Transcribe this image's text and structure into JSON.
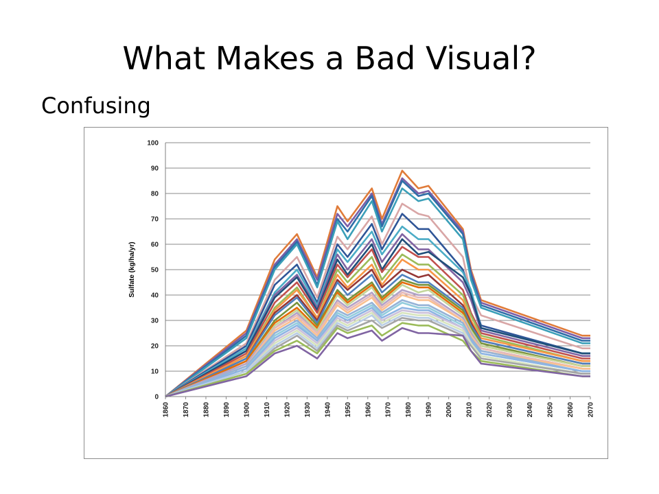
{
  "slide": {
    "title": "What Makes a Bad Visual?",
    "subtitle": "Confusing"
  },
  "chart_data": {
    "type": "line",
    "title": "",
    "xlabel": "",
    "ylabel": "Sulfate (kg/ha/yr)",
    "ylim": [
      0,
      100
    ],
    "xlim": [
      1860,
      2070
    ],
    "yticks": [
      0,
      10,
      20,
      30,
      40,
      50,
      60,
      70,
      80,
      90,
      100
    ],
    "xticks": [
      "1860",
      "1870",
      "1880",
      "1890",
      "1900",
      "1910",
      "1920",
      "1930",
      "1940",
      "1950",
      "1960",
      "1970",
      "1980",
      "1990",
      "2000",
      "2010",
      "2020",
      "2030",
      "2040",
      "2050",
      "2060",
      "2070"
    ],
    "grid": true,
    "legend": "none",
    "x": [
      1860,
      1900,
      1914,
      1925,
      1935,
      1945,
      1950,
      1962,
      1967,
      1977,
      1985,
      1990,
      2007,
      2011,
      2016,
      2066,
      2070
    ],
    "series": [
      {
        "color": "#E07B39",
        "values": [
          0,
          26,
          54,
          64,
          47,
          75,
          69,
          82,
          70,
          89,
          82,
          83,
          66,
          50,
          38,
          24,
          24
        ]
      },
      {
        "color": "#7B5EA7",
        "values": [
          0,
          25,
          52,
          62,
          46,
          72,
          67,
          80,
          68,
          86,
          80,
          81,
          65,
          49,
          37,
          23,
          23
        ]
      },
      {
        "color": "#2E6EA8",
        "values": [
          0,
          24,
          51,
          61,
          44,
          70,
          65,
          79,
          67,
          85,
          79,
          80,
          64,
          48,
          36,
          22,
          22
        ]
      },
      {
        "color": "#3B9FB8",
        "values": [
          0,
          23,
          50,
          60,
          43,
          69,
          62,
          77,
          65,
          82,
          77,
          78,
          62,
          46,
          35,
          21,
          21
        ]
      },
      {
        "color": "#D9A6A6",
        "values": [
          0,
          21,
          46,
          55,
          39,
          63,
          58,
          71,
          60,
          76,
          72,
          71,
          55,
          40,
          32,
          19,
          19
        ]
      },
      {
        "color": "#2F5597",
        "values": [
          0,
          20,
          44,
          52,
          37,
          60,
          55,
          68,
          58,
          72,
          66,
          66,
          50,
          40,
          28,
          17,
          17
        ]
      },
      {
        "color": "#4BACC6",
        "values": [
          0,
          19,
          41,
          50,
          36,
          58,
          53,
          65,
          56,
          67,
          62,
          62,
          49,
          42,
          27,
          17,
          17
        ]
      },
      {
        "color": "#8064A2",
        "values": [
          0,
          18,
          40,
          48,
          35,
          56,
          50,
          62,
          53,
          64,
          58,
          58,
          45,
          38,
          26,
          16,
          16
        ]
      },
      {
        "color": "#1F4E79",
        "values": [
          0,
          18,
          39,
          47,
          34,
          54,
          48,
          60,
          50,
          62,
          56,
          57,
          47,
          40,
          27,
          17,
          17
        ]
      },
      {
        "color": "#C0504D",
        "values": [
          0,
          17,
          37,
          45,
          33,
          52,
          47,
          58,
          49,
          59,
          55,
          55,
          42,
          33,
          25,
          15,
          15
        ]
      },
      {
        "color": "#9BBB59",
        "values": [
          0,
          16,
          35,
          43,
          31,
          50,
          45,
          55,
          46,
          56,
          52,
          52,
          40,
          32,
          24,
          14,
          14
        ]
      },
      {
        "color": "#F79646",
        "values": [
          0,
          16,
          34,
          42,
          31,
          48,
          43,
          52,
          44,
          54,
          50,
          50,
          38,
          30,
          23,
          14,
          14
        ]
      },
      {
        "color": "#953735",
        "values": [
          0,
          15,
          33,
          40,
          30,
          46,
          42,
          50,
          43,
          50,
          47,
          48,
          36,
          29,
          22,
          13,
          13
        ]
      },
      {
        "color": "#4F81BD",
        "values": [
          0,
          15,
          32,
          39,
          29,
          45,
          40,
          48,
          41,
          48,
          45,
          45,
          35,
          28,
          22,
          13,
          13
        ]
      },
      {
        "color": "#77933C",
        "values": [
          0,
          14,
          30,
          37,
          28,
          42,
          38,
          45,
          39,
          46,
          44,
          44,
          34,
          27,
          21,
          12,
          12
        ]
      },
      {
        "color": "#E46C0A",
        "values": [
          0,
          14,
          29,
          35,
          27,
          41,
          37,
          44,
          38,
          45,
          43,
          43,
          33,
          26,
          20,
          12,
          12
        ]
      },
      {
        "color": "#C3D69B",
        "values": [
          0,
          13,
          28,
          34,
          26,
          40,
          36,
          43,
          37,
          44,
          41,
          42,
          32,
          26,
          20,
          12,
          12
        ]
      },
      {
        "color": "#B3A2C7",
        "values": [
          0,
          13,
          27,
          33,
          25,
          38,
          35,
          41,
          36,
          42,
          40,
          40,
          31,
          25,
          19,
          11,
          11
        ]
      },
      {
        "color": "#E6B9B8",
        "values": [
          0,
          12,
          27,
          32,
          25,
          37,
          34,
          40,
          35,
          41,
          39,
          39,
          30,
          24,
          19,
          11,
          11
        ]
      },
      {
        "color": "#FAC090",
        "values": [
          0,
          12,
          26,
          31,
          24,
          36,
          33,
          39,
          34,
          40,
          38,
          38,
          30,
          24,
          18,
          11,
          11
        ]
      },
      {
        "color": "#95B3D7",
        "values": [
          0,
          12,
          25,
          30,
          23,
          34,
          32,
          37,
          33,
          38,
          36,
          36,
          29,
          23,
          18,
          10,
          10
        ]
      },
      {
        "color": "#93CDDD",
        "values": [
          0,
          11,
          24,
          29,
          22,
          33,
          31,
          36,
          32,
          37,
          35,
          35,
          28,
          22,
          17,
          10,
          10
        ]
      },
      {
        "color": "#8EB4E3",
        "values": [
          0,
          11,
          23,
          28,
          22,
          32,
          30,
          35,
          31,
          35,
          34,
          34,
          27,
          22,
          17,
          10,
          10
        ]
      },
      {
        "color": "#CCC1DA",
        "values": [
          0,
          10,
          22,
          27,
          21,
          31,
          29,
          34,
          30,
          34,
          33,
          33,
          27,
          21,
          16,
          9,
          9
        ]
      },
      {
        "color": "#D7E4BD",
        "values": [
          0,
          10,
          21,
          26,
          20,
          30,
          28,
          33,
          29,
          33,
          32,
          32,
          26,
          21,
          16,
          9,
          9
        ]
      },
      {
        "color": "#B9CDE5",
        "values": [
          0,
          10,
          20,
          25,
          19,
          29,
          27,
          32,
          28,
          32,
          31,
          31,
          25,
          20,
          15,
          9,
          9
        ]
      },
      {
        "color": "#A5A5A5",
        "values": [
          0,
          9,
          19,
          24,
          18,
          28,
          26,
          30,
          27,
          31,
          30,
          30,
          24,
          20,
          15,
          9,
          9
        ]
      },
      {
        "color": "#9BBB59",
        "values": [
          0,
          9,
          18,
          22,
          17,
          27,
          25,
          28,
          24,
          29,
          28,
          28,
          22,
          18,
          14,
          8,
          8
        ]
      },
      {
        "color": "#8064A2",
        "values": [
          0,
          8,
          17,
          20,
          15,
          25,
          23,
          26,
          22,
          27,
          25,
          25,
          24,
          18,
          13,
          8,
          8
        ]
      }
    ]
  }
}
